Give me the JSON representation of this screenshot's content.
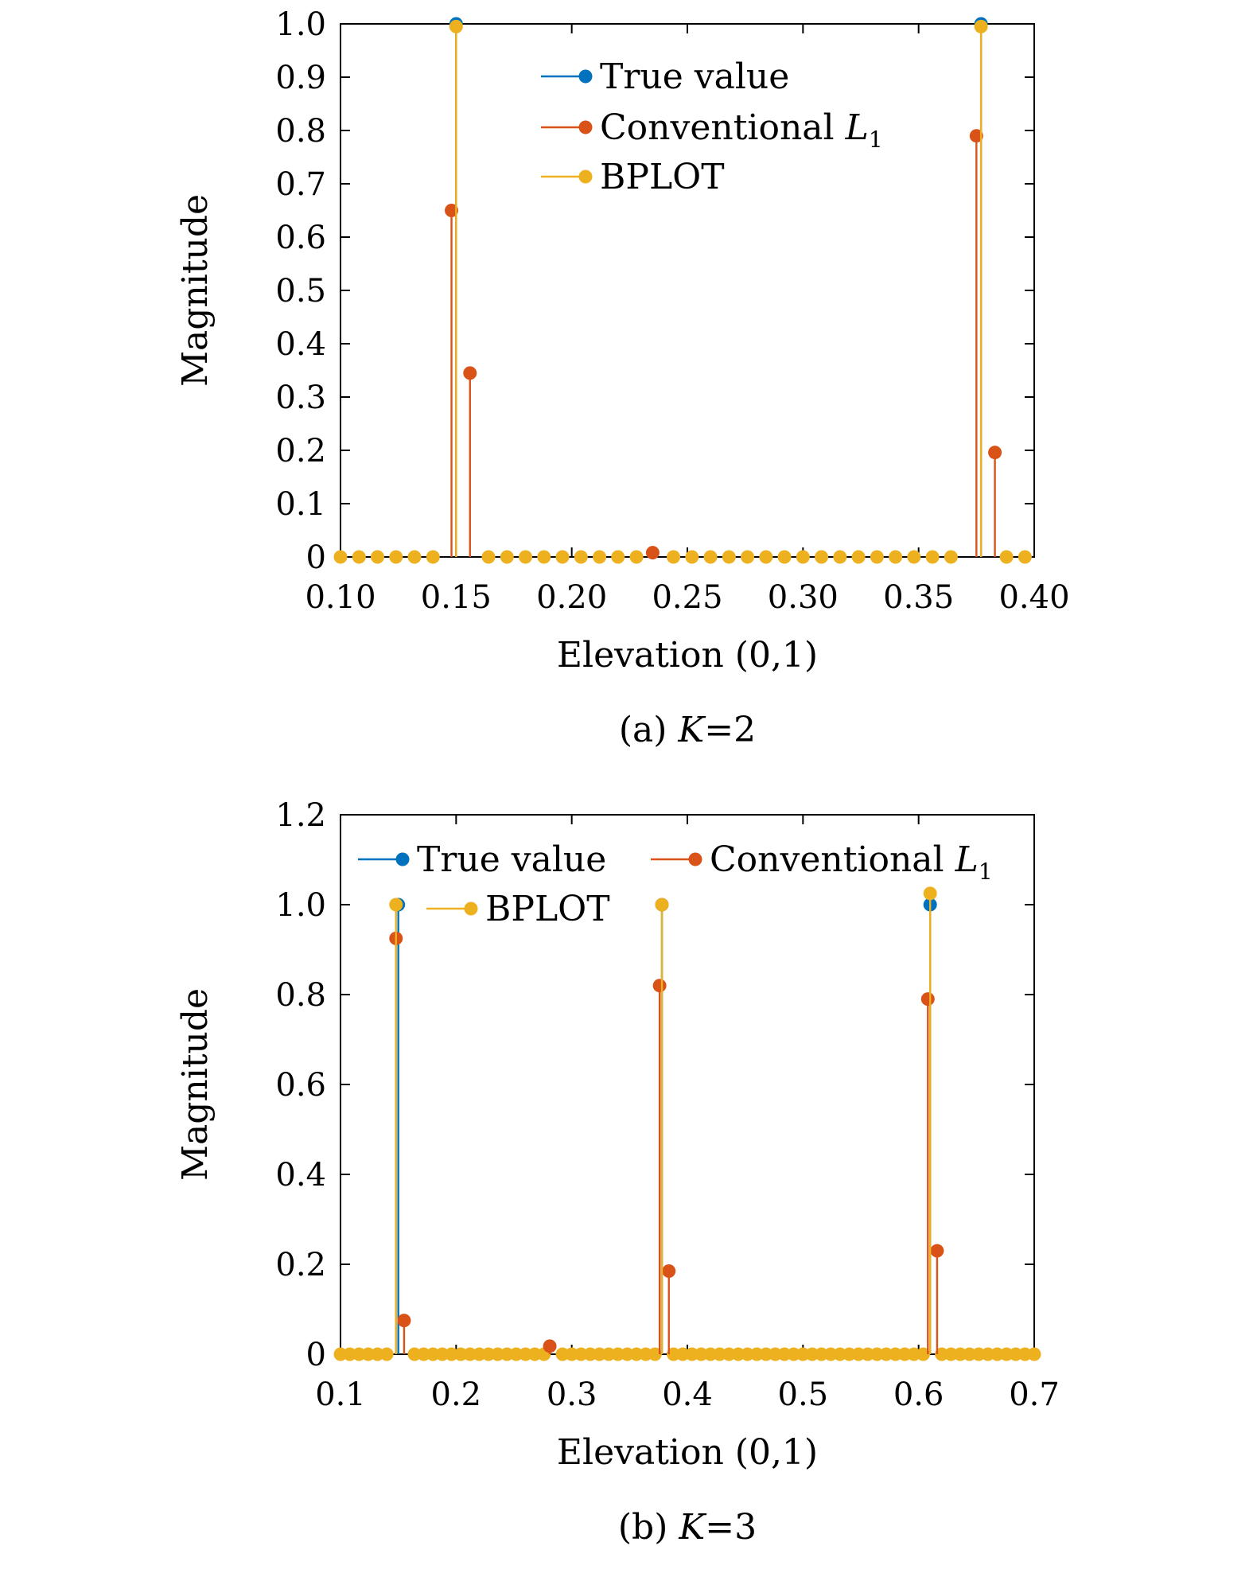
{
  "colors": {
    "true_value": "#0072BD",
    "conventional": "#D95319",
    "bplot": "#EDB120",
    "axis": "#000000"
  },
  "chart_data": [
    {
      "type": "scatter",
      "subtype": "stem",
      "caption_prefix": "(a) ",
      "caption_var": "K",
      "caption_suffix": "=2",
      "xlabel": "Elevation (0,1)",
      "ylabel": "Magnitude",
      "xlim": [
        0.1,
        0.4
      ],
      "ylim": [
        0,
        1.0
      ],
      "xticks": [
        0.1,
        0.15,
        0.2,
        0.25,
        0.3,
        0.35,
        0.4
      ],
      "xtick_labels": [
        "0.10",
        "0.15",
        "0.20",
        "0.25",
        "0.30",
        "0.35",
        "0.40"
      ],
      "yticks": [
        0,
        0.1,
        0.2,
        0.3,
        0.4,
        0.5,
        0.6,
        0.7,
        0.8,
        0.9,
        1.0
      ],
      "ytick_labels": [
        "0",
        "0.1",
        "0.2",
        "0.3",
        "0.4",
        "0.5",
        "0.6",
        "0.7",
        "0.8",
        "0.9",
        "1.0"
      ],
      "legend_position": "top-center",
      "legend_layout": "vertical",
      "grid_start": 0.1,
      "grid_end": 0.4,
      "grid_step": 0.008,
      "series": [
        {
          "name": "True value",
          "points": [
            [
              0.15,
              1.0
            ],
            [
              0.377,
              1.0
            ]
          ]
        },
        {
          "name": "Conventional",
          "name_math": "L",
          "name_sub": "1",
          "points": [
            [
              0.148,
              0.65
            ],
            [
              0.156,
              0.345
            ],
            [
              0.235,
              0.008
            ],
            [
              0.375,
              0.79
            ],
            [
              0.383,
              0.196
            ]
          ]
        },
        {
          "name": "BPLOT",
          "points": [
            [
              0.15,
              0.995
            ],
            [
              0.377,
              0.995
            ]
          ]
        }
      ]
    },
    {
      "type": "scatter",
      "subtype": "stem",
      "caption_prefix": "(b) ",
      "caption_var": "K",
      "caption_suffix": "=3",
      "xlabel": "Elevation (0,1)",
      "ylabel": "Magnitude",
      "xlim": [
        0.1,
        0.7
      ],
      "ylim": [
        0,
        1.2
      ],
      "xticks": [
        0.1,
        0.2,
        0.3,
        0.4,
        0.5,
        0.6,
        0.7
      ],
      "xtick_labels": [
        "0.1",
        "0.2",
        "0.3",
        "0.4",
        "0.5",
        "0.6",
        "0.7"
      ],
      "yticks": [
        0,
        0.2,
        0.4,
        0.6,
        0.8,
        1.0,
        1.2
      ],
      "ytick_labels": [
        "0",
        "0.2",
        "0.4",
        "0.6",
        "0.8",
        "1.0",
        "1.2"
      ],
      "legend_position": "top",
      "legend_layout": "two-column",
      "grid_start": 0.1,
      "grid_end": 0.7,
      "grid_step": 0.008,
      "series": [
        {
          "name": "True value",
          "points": [
            [
              0.15,
              1.0
            ],
            [
              0.378,
              1.0
            ],
            [
              0.61,
              1.0
            ]
          ]
        },
        {
          "name": "Conventional",
          "name_math": "L",
          "name_sub": "1",
          "points": [
            [
              0.148,
              0.925
            ],
            [
              0.155,
              0.075
            ],
            [
              0.281,
              0.018
            ],
            [
              0.376,
              0.82
            ],
            [
              0.384,
              0.185
            ],
            [
              0.608,
              0.79
            ],
            [
              0.616,
              0.23
            ]
          ]
        },
        {
          "name": "BPLOT",
          "points": [
            [
              0.148,
              1.0
            ],
            [
              0.378,
              1.0
            ],
            [
              0.61,
              1.025
            ]
          ]
        }
      ]
    }
  ]
}
